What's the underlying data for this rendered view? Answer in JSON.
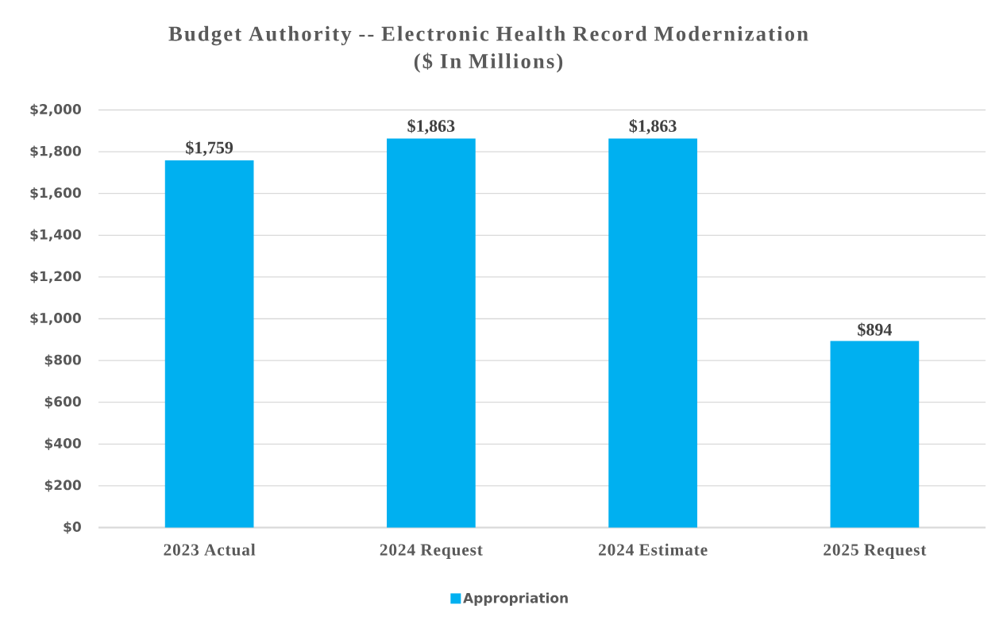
{
  "chart_data": {
    "type": "bar",
    "title": "Budget Authority -- Electronic Health Record Modernization",
    "subtitle": "($ In Millions)",
    "categories": [
      "2023 Actual",
      "2024 Request",
      "2024 Estimate",
      "2025 Request"
    ],
    "series": [
      {
        "name": "Appropriation",
        "color": "#00b0f0",
        "values": [
          1759,
          1863,
          1863,
          894
        ],
        "value_labels": [
          "$1,759",
          "$1,863",
          "$1,863",
          "$894"
        ]
      }
    ],
    "ylim": [
      0,
      2000
    ],
    "yticks": [
      {
        "value": 0,
        "label": "$0"
      },
      {
        "value": 200,
        "label": "$200"
      },
      {
        "value": 400,
        "label": "$400"
      },
      {
        "value": 600,
        "label": "$600"
      },
      {
        "value": 800,
        "label": "$800"
      },
      {
        "value": 1000,
        "label": "$1,000"
      },
      {
        "value": 1200,
        "label": "$1,200"
      },
      {
        "value": 1400,
        "label": "$1,400"
      },
      {
        "value": 1600,
        "label": "$1,600"
      },
      {
        "value": 1800,
        "label": "$1,800"
      },
      {
        "value": 2000,
        "label": "$2,000"
      }
    ],
    "grid": "y",
    "legend": "bottom"
  }
}
